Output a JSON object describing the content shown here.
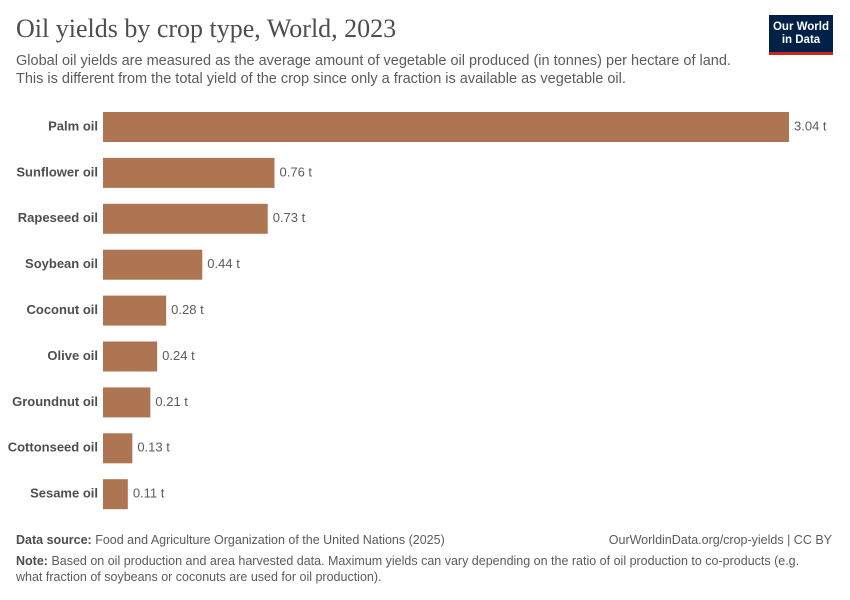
{
  "chart_data": {
    "type": "bar",
    "orientation": "horizontal",
    "title": "Oil yields by crop type, World, 2023",
    "subtitle": "Global oil yields are measured as the average amount of vegetable oil produced (in tonnes) per hectare of land. This is different from the total yield of the crop since only a fraction is available as vegetable oil.",
    "categories": [
      "Palm oil",
      "Sunflower oil",
      "Rapeseed oil",
      "Soybean oil",
      "Coconut oil",
      "Olive oil",
      "Groundnut oil",
      "Cottonseed oil",
      "Sesame oil"
    ],
    "values": [
      3.04,
      0.76,
      0.73,
      0.44,
      0.28,
      0.24,
      0.21,
      0.13,
      0.11
    ],
    "value_labels": [
      "3.04 t",
      "0.76 t",
      "0.73 t",
      "0.44 t",
      "0.28 t",
      "0.24 t",
      "0.21 t",
      "0.13 t",
      "0.11 t"
    ],
    "color": "#ae7552"
  },
  "logo": [
    "Our World",
    "in Data"
  ],
  "footer": {
    "source_label": "Data source:",
    "source": "Food and Agriculture Organization of the United Nations (2025)",
    "url": "OurWorldinData.org/crop-yields | CC BY",
    "note_label": "Note:",
    "note": "Based on oil production and area harvested data. Maximum yields can vary depending on the ratio of oil production to co-products (e.g. what fraction of soybeans or coconuts are used for oil production)."
  }
}
